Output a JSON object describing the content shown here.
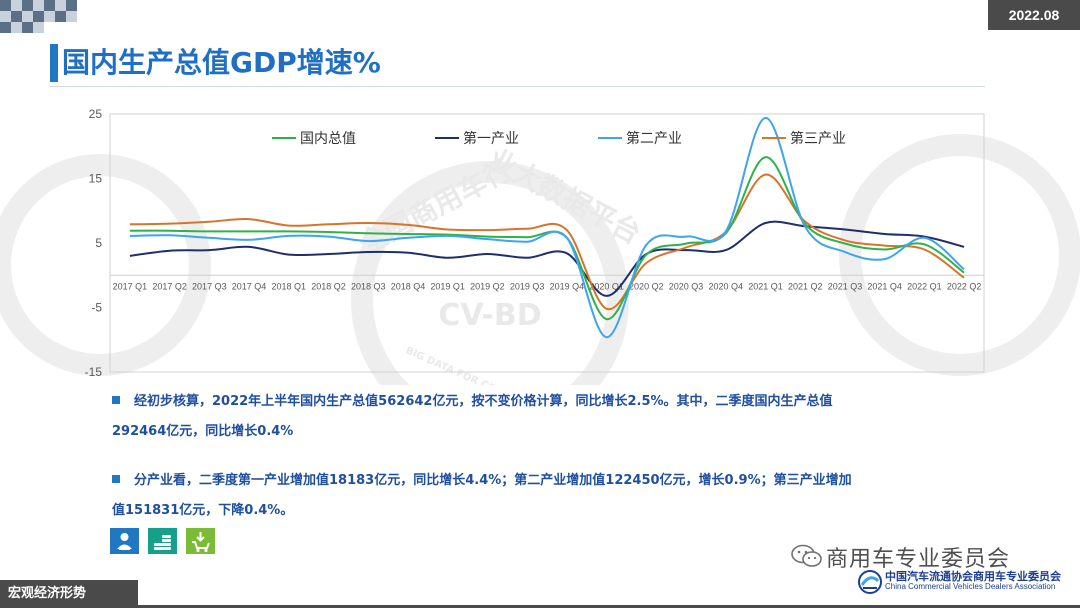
{
  "header": {
    "date": "2022.08",
    "title": "国内生产总值GDP增速%"
  },
  "brand": {
    "accent": "#1f78c1",
    "dark_gray": "#4a4a4a",
    "icon_colors": [
      "#1f78c1",
      "#17a089",
      "#7cbb35"
    ]
  },
  "icons": [
    "person-service-icon",
    "coins-icon",
    "cart-download-icon"
  ],
  "chart_data": {
    "type": "line",
    "title": "",
    "xlabel": "",
    "ylabel": "",
    "ylim": [
      -15,
      25
    ],
    "yticks": [
      "25",
      "15",
      "5",
      "-5",
      "-15"
    ],
    "grid": false,
    "legend_position": "top",
    "categories": [
      "2017 Q1",
      "2017 Q2",
      "2017 Q3",
      "2017 Q4",
      "2018 Q1",
      "2018 Q2",
      "2018 Q3",
      "2018 Q4",
      "2019 Q1",
      "2019 Q2",
      "2019 Q3",
      "2019 Q4",
      "2020 Q1",
      "2020 Q2",
      "2020 Q3",
      "2020 Q4",
      "2021 Q1",
      "2021 Q2",
      "2021 Q3",
      "2021 Q4",
      "2022 Q1",
      "2022 Q2"
    ],
    "series": [
      {
        "name": "国内总值",
        "color": "#2db24a",
        "values": [
          6.9,
          6.9,
          6.8,
          6.8,
          6.8,
          6.7,
          6.5,
          6.4,
          6.3,
          6.0,
          5.9,
          5.8,
          -6.8,
          3.2,
          4.9,
          6.5,
          18.3,
          7.9,
          4.9,
          4.0,
          4.8,
          0.4
        ]
      },
      {
        "name": "第一产业",
        "color": "#1e2f6e",
        "values": [
          3.0,
          3.8,
          3.9,
          4.4,
          3.2,
          3.3,
          3.6,
          3.5,
          2.7,
          3.3,
          2.7,
          3.4,
          -3.2,
          3.3,
          3.9,
          3.9,
          8.1,
          7.6,
          7.1,
          6.4,
          6.0,
          4.4
        ]
      },
      {
        "name": "第二产业",
        "color": "#3ea3f0",
        "values": [
          6.1,
          6.2,
          5.8,
          5.5,
          6.1,
          6.0,
          5.3,
          5.8,
          6.1,
          5.6,
          5.2,
          5.8,
          -9.6,
          4.7,
          6.0,
          6.8,
          24.4,
          7.5,
          3.6,
          2.5,
          5.8,
          0.9
        ]
      },
      {
        "name": "第三产业",
        "color": "#d8742a",
        "values": [
          7.9,
          8.0,
          8.3,
          8.7,
          7.7,
          7.9,
          8.1,
          7.8,
          7.1,
          7.0,
          7.2,
          7.0,
          -5.2,
          1.9,
          4.3,
          6.7,
          15.6,
          8.3,
          5.4,
          4.6,
          4.0,
          -0.4
        ]
      }
    ],
    "watermarks": [
      "全国商用车行",
      "业大数据平台",
      "CV-BD",
      "BIG DATA FOR COMMERCIAL VEHICLE"
    ]
  },
  "bullets": [
    {
      "line1": "经初步核算，2022年上半年国内生产总值562642亿元，按不变价格计算，同比增长2.5%。其中，二季度国内生产总值",
      "line2": "292464亿元，同比增长0.4%"
    },
    {
      "line1": "分产业看，二季度第一产业增加值18183亿元，同比增长4.4%；第二产业增加值122450亿元，增长0.9%；第三产业增加",
      "line2": "值151831亿元，下降0.4%。"
    }
  ],
  "footer": {
    "section": "宏观经济形势",
    "wechat_name": "商用车专业委员会",
    "org_cn": "中国汽车流通协会商用车专业委员会",
    "org_en": "China Commercial Vehicles Dealers Association"
  }
}
